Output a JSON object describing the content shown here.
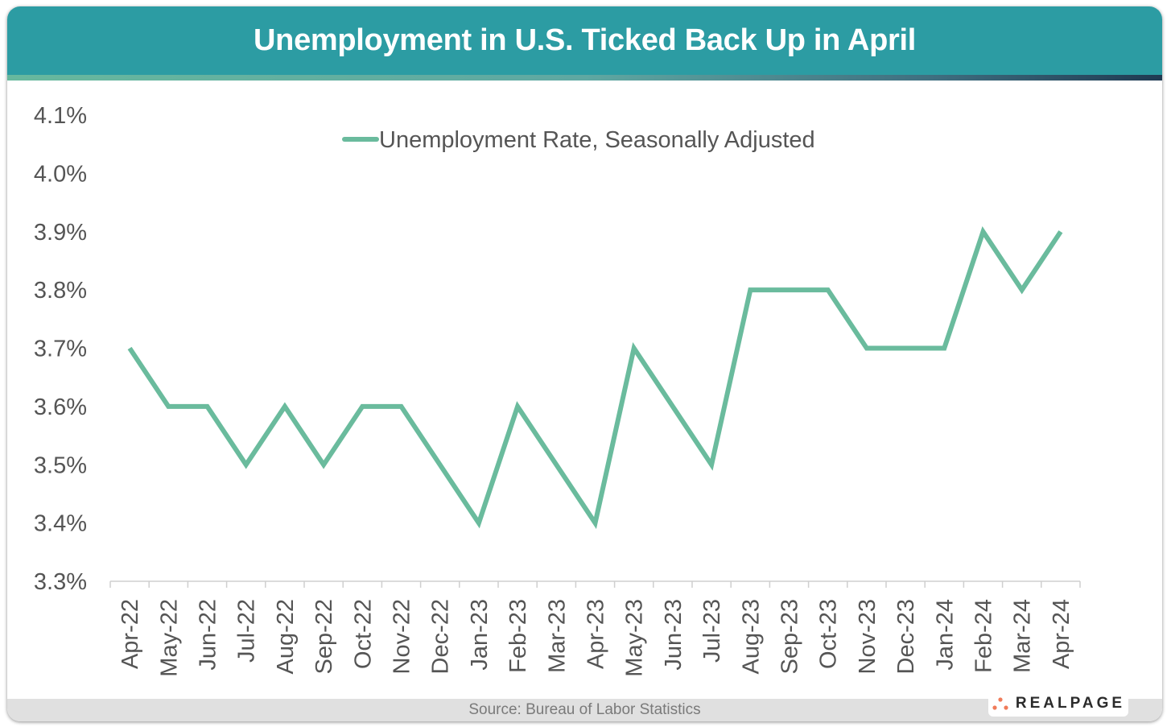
{
  "title": "Unemployment in U.S. Ticked Back Up in April",
  "source": "Source: Bureau of Labor Statistics",
  "logo": "REALPAGE",
  "colors": {
    "header": "#2c9ca3",
    "line": "#6abb9d",
    "logo_dots": "#f07b5a"
  },
  "chart_data": {
    "type": "line",
    "title": "",
    "xlabel": "",
    "ylabel": "",
    "ylim": [
      3.3,
      4.1
    ],
    "yticks": [
      "3.3%",
      "3.4%",
      "3.5%",
      "3.6%",
      "3.7%",
      "3.8%",
      "3.9%",
      "4.0%",
      "4.1%"
    ],
    "grid": false,
    "legend_position": "top-center",
    "categories": [
      "Apr-22",
      "May-22",
      "Jun-22",
      "Jul-22",
      "Aug-22",
      "Sep-22",
      "Oct-22",
      "Nov-22",
      "Dec-22",
      "Jan-23",
      "Feb-23",
      "Mar-23",
      "Apr-23",
      "May-23",
      "Jun-23",
      "Jul-23",
      "Aug-23",
      "Sep-23",
      "Oct-23",
      "Nov-23",
      "Dec-23",
      "Jan-24",
      "Feb-24",
      "Mar-24",
      "Apr-24"
    ],
    "series": [
      {
        "name": "Unemployment Rate, Seasonally Adjusted",
        "values": [
          3.7,
          3.6,
          3.6,
          3.5,
          3.6,
          3.5,
          3.6,
          3.6,
          3.5,
          3.4,
          3.6,
          3.5,
          3.4,
          3.7,
          3.6,
          3.5,
          3.8,
          3.8,
          3.8,
          3.7,
          3.7,
          3.7,
          3.9,
          3.8,
          3.9
        ]
      }
    ]
  }
}
